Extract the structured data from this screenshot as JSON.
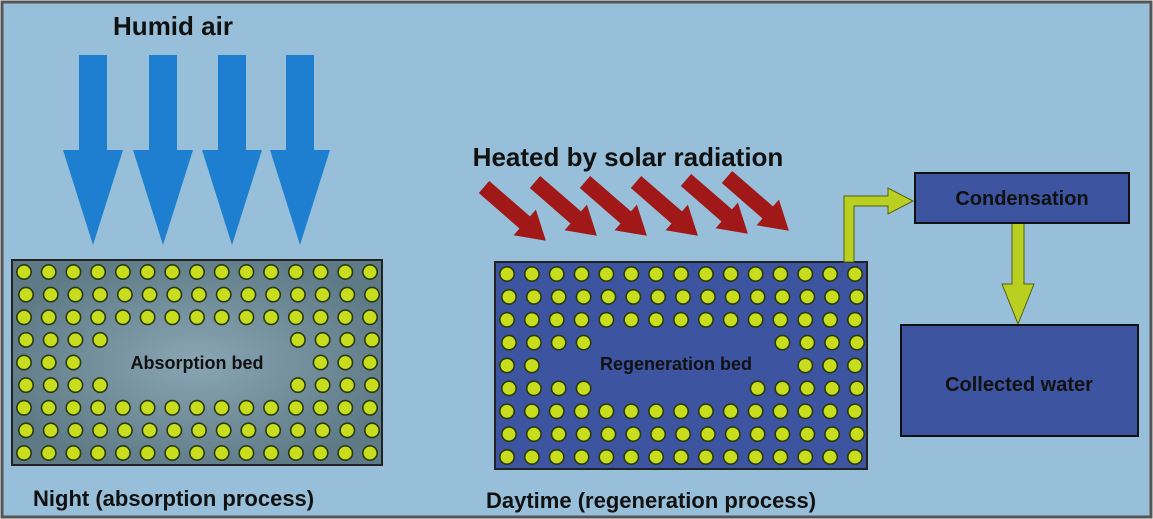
{
  "labels": {
    "humid_air": "Humid air",
    "heated": "Heated by solar radiation",
    "absorption_bed": "Absorption bed",
    "regeneration_bed": "Regeneration bed",
    "condensation": "Condensation",
    "collected_water": "Collected water",
    "night_caption": "Night (absorption process)",
    "day_caption": "Daytime (regeneration process)"
  },
  "colors": {
    "background": "#97bfd9",
    "frame": "#555555",
    "blue_arrow": "#1e7fd0",
    "red_arrow": "#a01818",
    "absorption_bed_fill": "#5e7a86",
    "absorption_bed_center": "#8aa6b4",
    "regeneration_bed_fill": "#3d55a0",
    "box_fill": "#3d55a0",
    "bead_fill": "#c7dd1e",
    "bead_stroke": "#2a3a10",
    "flow_arrow": "#b9cf22",
    "text_dark": "#111111"
  },
  "icons": {
    "humid_air_arrows": "down-arrow-icon",
    "solar_arrows": "diagonal-arrow-icon",
    "flow_arrows": "flow-arrow-icon",
    "beads": "sorbent-bead-icon"
  }
}
